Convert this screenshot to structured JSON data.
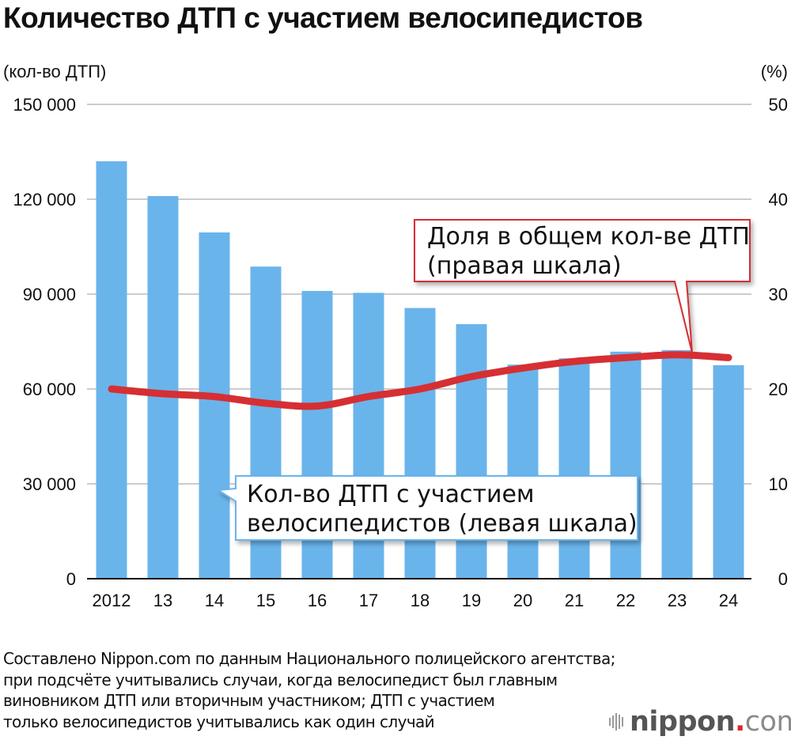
{
  "title": "Количество ДТП с участием велосипедистов",
  "axes": {
    "left_unit": "(кол-во ДТП)",
    "right_unit": "(%)",
    "left_ticks": [
      "0",
      "30 000",
      "60 000",
      "90 000",
      "120 000",
      "150 000"
    ],
    "right_ticks": [
      "0",
      "10",
      "20",
      "30",
      "40",
      "50"
    ]
  },
  "callouts": {
    "line": {
      "line1": "Доля в общем кол-ве ДТП",
      "line2": "(правая шкала)"
    },
    "bars": {
      "line1": "Кол-во ДТП с участием",
      "line2": "велосипедистов (левая шкала)"
    }
  },
  "note": [
    "Составлено Nippon.com по данным Национального полицейского агентства;",
    "при подсчёте учитывались случаи, когда велосипедист был главным",
    "виновником ДТП или вторичным участником; ДТП с участием",
    "только велосипедистов учитывались как один случай"
  ],
  "logo": {
    "name": "nippon",
    "dot": ".",
    "suffix": "com"
  },
  "colors": {
    "bar": "#6ab4ec",
    "line": "#d62f33",
    "grid": "#cccccc",
    "axis": "#111111",
    "callout_line_border": "#d62f33",
    "callout_bar_border": "#6ab4ec"
  },
  "chart_data": {
    "type": "bar",
    "title": "Количество ДТП с участием велосипедистов",
    "categories": [
      "2012",
      "13",
      "14",
      "15",
      "16",
      "17",
      "18",
      "19",
      "20",
      "21",
      "22",
      "23",
      "24"
    ],
    "series": [
      {
        "name": "Кол-во ДТП с участием велосипедистов (левая шкала)",
        "type": "bar",
        "axis": "left",
        "values": [
          132000,
          121000,
          109500,
          98700,
          91000,
          90400,
          85600,
          80500,
          67700,
          69700,
          71800,
          72300,
          67500
        ]
      },
      {
        "name": "Доля в общем кол-ве ДТП (правая шкала)",
        "type": "line",
        "axis": "right",
        "values": [
          20.0,
          19.5,
          19.2,
          18.5,
          18.2,
          19.2,
          20.0,
          21.3,
          22.2,
          22.9,
          23.3,
          23.6,
          23.3
        ]
      }
    ],
    "xlabel": "",
    "ylabel": "(кол-во ДТП)",
    "ylabel_right": "(%)",
    "ylim": [
      0,
      150000
    ],
    "ylim_right": [
      0,
      50
    ],
    "yticks": [
      0,
      30000,
      60000,
      90000,
      120000,
      150000
    ],
    "yticks_right": [
      0,
      10,
      20,
      30,
      40,
      50
    ],
    "grid": true,
    "legend": "callout annotations"
  }
}
